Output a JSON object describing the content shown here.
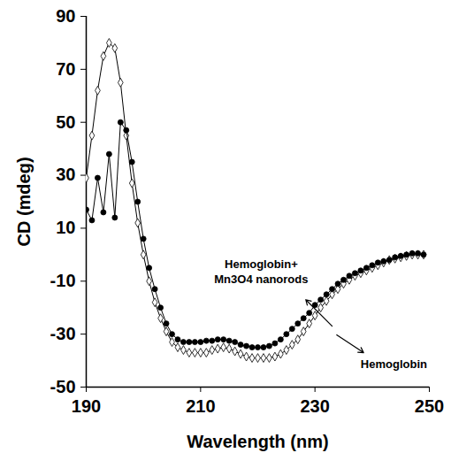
{
  "chart_data": {
    "type": "line",
    "x_label": "Wavelength (nm)",
    "y_label": "CD (mdeg)",
    "xlim": [
      190,
      250
    ],
    "xticks": [
      190,
      210,
      230,
      250
    ],
    "ylim": [
      -50,
      90
    ],
    "yticks": [
      -50,
      -30,
      -10,
      10,
      30,
      50,
      70,
      90
    ],
    "grid": false,
    "x": [
      190,
      191,
      192,
      193,
      194,
      195,
      196,
      197,
      198,
      199,
      200,
      201,
      202,
      203,
      204,
      205,
      206,
      207,
      208,
      209,
      210,
      211,
      212,
      213,
      214,
      215,
      216,
      217,
      218,
      219,
      220,
      221,
      222,
      223,
      224,
      225,
      226,
      227,
      228,
      229,
      230,
      231,
      232,
      233,
      234,
      235,
      236,
      237,
      238,
      239,
      240,
      241,
      242,
      243,
      244,
      245,
      246,
      247,
      248,
      249
    ],
    "series": [
      {
        "name": "Hemoglobin",
        "color": "#000000",
        "marker": "open_diamond",
        "line_style": "solid",
        "values": [
          29,
          45,
          62,
          75,
          80,
          78,
          65,
          45,
          27,
          12,
          0,
          -10,
          -18,
          -24,
          -29,
          -33,
          -35,
          -36,
          -37,
          -37,
          -37,
          -37,
          -36,
          -35.5,
          -35,
          -35.5,
          -36.5,
          -37.5,
          -38.5,
          -39,
          -39,
          -39,
          -39,
          -38.5,
          -37.5,
          -36,
          -34,
          -32,
          -29,
          -26,
          -23,
          -20,
          -17.5,
          -15,
          -13,
          -11,
          -9.5,
          -8,
          -7,
          -6,
          -5,
          -4,
          -3,
          -2,
          -1.5,
          -1,
          -0.5,
          0,
          0,
          0
        ]
      },
      {
        "name": "Hemoglobin+\nMn3O4 nanorods",
        "color": "#000000",
        "marker": "filled_circle",
        "line_style": "solid",
        "values": [
          17,
          13,
          29,
          16,
          38,
          14,
          50,
          47,
          35,
          20,
          6,
          -5,
          -13,
          -20,
          -26,
          -30,
          -32,
          -33,
          -33,
          -33,
          -33,
          -32.5,
          -32.5,
          -32,
          -32,
          -32.5,
          -33,
          -34,
          -34.5,
          -35,
          -35,
          -35,
          -34.5,
          -33.5,
          -32,
          -30,
          -28,
          -26,
          -24,
          -22,
          -19,
          -17,
          -15,
          -13,
          -11,
          -9.5,
          -8,
          -7,
          -6,
          -5,
          -4,
          -3,
          -2.5,
          -2,
          -1,
          -0.5,
          0,
          0.5,
          0.5,
          0
        ]
      }
    ],
    "annotations": [
      {
        "text": "Hemoglobin+\nMn3O4 nanorods",
        "x": 220.6,
        "y": -6,
        "arrow_from": [
          233,
          -27
        ],
        "arrow_to": [
          228.4,
          -17
        ]
      },
      {
        "text": "Hemoglobin",
        "x": 243.8,
        "y": -41,
        "arrow_from": [
          233.8,
          -30.3
        ],
        "arrow_to": [
          238.5,
          -37
        ]
      }
    ]
  }
}
